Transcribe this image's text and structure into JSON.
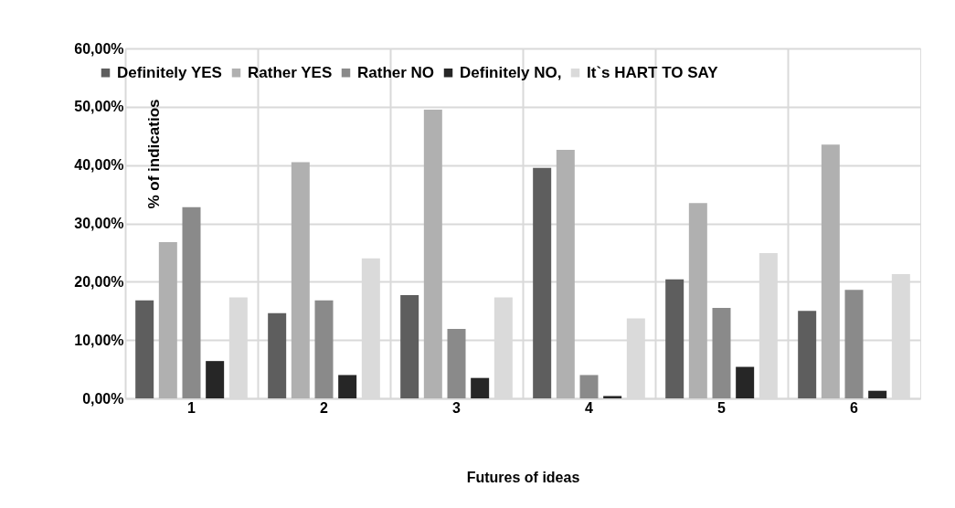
{
  "chart_data": {
    "type": "bar",
    "xlabel": "Futures of ideas",
    "ylabel": "% of indicatios",
    "categories": [
      "1",
      "2",
      "3",
      "4",
      "5",
      "6"
    ],
    "series": [
      {
        "name": "Definitely YES",
        "color": "#5e5e5e",
        "values": [
          16.8,
          14.6,
          17.7,
          39.5,
          20.4,
          15.0
        ]
      },
      {
        "name": "Rather YES",
        "color": "#b0b0b0",
        "values": [
          26.8,
          40.5,
          49.5,
          42.6,
          33.5,
          43.5
        ]
      },
      {
        "name": "Rather NO",
        "color": "#8a8a8a",
        "values": [
          32.8,
          16.8,
          11.9,
          4.0,
          15.5,
          18.6
        ]
      },
      {
        "name": "Definitely NO,",
        "color": "#262626",
        "values": [
          6.4,
          4.0,
          3.5,
          0.4,
          5.4,
          1.3
        ]
      },
      {
        "name": "It`s HART TO SAY",
        "color": "#dadada",
        "values": [
          17.3,
          24.0,
          17.3,
          13.7,
          24.9,
          21.3
        ]
      }
    ],
    "ylim": [
      0,
      60
    ],
    "yticks": [
      {
        "value": 0,
        "label": "0,00%"
      },
      {
        "value": 10,
        "label": "10,00%"
      },
      {
        "value": 20,
        "label": "20,00%"
      },
      {
        "value": 30,
        "label": "30,00%"
      },
      {
        "value": 40,
        "label": "40,00%"
      },
      {
        "value": 50,
        "label": "50,00%"
      },
      {
        "value": 60,
        "label": "60,00%"
      }
    ],
    "grid": true,
    "legend": "top"
  }
}
